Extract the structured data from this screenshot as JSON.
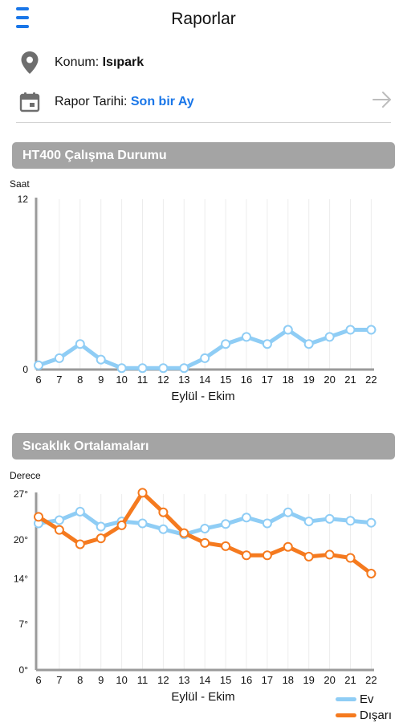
{
  "header": {
    "title": "Raporlar",
    "menu_icon": "hamburger-menu-icon"
  },
  "location": {
    "label": "Konum:",
    "value": "Isıpark",
    "icon": "location-pin-icon"
  },
  "report_date": {
    "label": "Rapor Tarihi:",
    "value": "Son bir Ay",
    "icon": "calendar-icon",
    "action_icon": "arrow-right-icon"
  },
  "colors": {
    "accent": "#1976e8",
    "series_ev": "#8fcdf5",
    "series_disari": "#f57a1f",
    "section_bg": "#a4a4a4"
  },
  "chart_data": [
    {
      "type": "line",
      "title": "HT400 Çalışma Durumu",
      "ylabel": "Saat",
      "xlabel": "Eylül - Ekim",
      "ylim": [
        0,
        12
      ],
      "yticks": [
        "0",
        "12"
      ],
      "grid": true,
      "x": [
        6,
        7,
        8,
        9,
        10,
        11,
        12,
        13,
        14,
        15,
        16,
        17,
        18,
        19,
        20,
        21,
        22
      ],
      "series": [
        {
          "name": "",
          "color": "#8fcdf5",
          "values": [
            0.3,
            0.8,
            1.8,
            0.7,
            0.1,
            0.1,
            0.1,
            0.1,
            0.8,
            1.8,
            2.3,
            1.8,
            2.8,
            1.8,
            2.3,
            2.8,
            2.8
          ]
        }
      ]
    },
    {
      "type": "line",
      "title": "Sıcaklık Ortalamaları",
      "ylabel": "Derece",
      "xlabel": "Eylül - Ekim",
      "ylim": [
        0,
        27
      ],
      "yticks": [
        "0°",
        "7°",
        "14°",
        "20°",
        "27°"
      ],
      "ytick_values": [
        0,
        7,
        14,
        20,
        27
      ],
      "grid": true,
      "legend": "bottom-right",
      "x": [
        6,
        7,
        8,
        9,
        10,
        11,
        12,
        13,
        14,
        15,
        16,
        17,
        18,
        19,
        20,
        21,
        22
      ],
      "series": [
        {
          "name": "Ev",
          "color": "#8fcdf5",
          "values": [
            22.5,
            23,
            24.3,
            22,
            22.8,
            22.5,
            21.6,
            20.8,
            21.7,
            22.4,
            23.4,
            22.5,
            24.2,
            22.8,
            23.2,
            22.9,
            22.6
          ]
        },
        {
          "name": "Dışarı",
          "color": "#f57a1f",
          "values": [
            23.5,
            21.5,
            19.3,
            20.2,
            22.2,
            27.2,
            24.2,
            21,
            19.5,
            19,
            17.6,
            17.6,
            18.9,
            17.4,
            17.7,
            17.2,
            14.8
          ]
        }
      ]
    }
  ]
}
